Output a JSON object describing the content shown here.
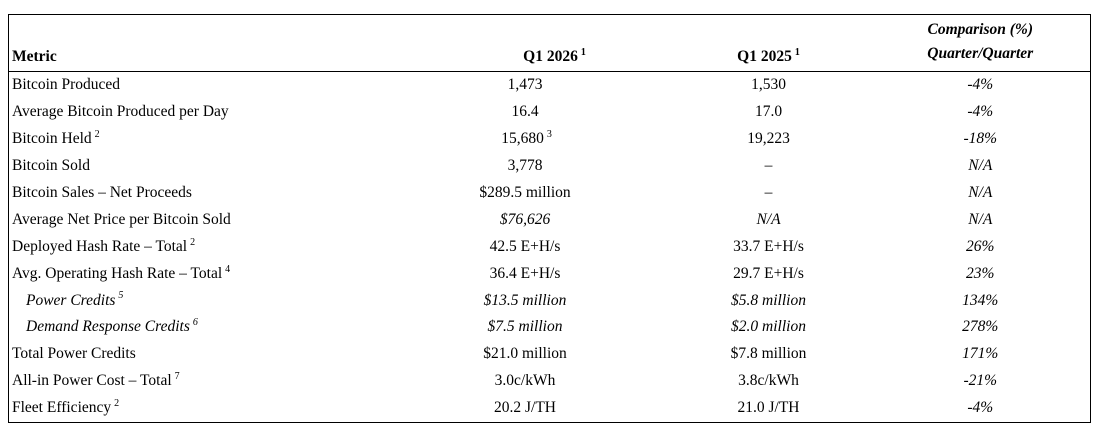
{
  "table": {
    "header": {
      "metric": "Metric",
      "col_2026": "Q1 2026",
      "col_2026_sup": "1",
      "col_2025": "Q1 2025",
      "col_2025_sup": "1",
      "comparison_line1": "Comparison (%)",
      "comparison_line2": "Quarter/Quarter"
    },
    "rows": [
      {
        "label": "Bitcoin Produced",
        "q1_2026": "1,473",
        "q1_2025": "1,530",
        "comparison": "-4%"
      },
      {
        "label": "Average Bitcoin Produced per Day",
        "q1_2026": "16.4",
        "q1_2025": "17.0",
        "comparison": "-4%"
      },
      {
        "label": "Bitcoin Held",
        "sup": "2",
        "q1_2026": "15,680",
        "q1_2026_sup": "3",
        "q1_2025": "19,223",
        "comparison": "-18%"
      },
      {
        "label": "Bitcoin Sold",
        "q1_2026": "3,778",
        "q1_2025": "–",
        "comparison": "N/A"
      },
      {
        "label": "Bitcoin Sales – Net Proceeds",
        "q1_2026": "$289.5 million",
        "q1_2025": "–",
        "comparison": "N/A"
      },
      {
        "label": "Average Net Price per Bitcoin Sold",
        "q1_2026": "$76,626",
        "q1_2025": "N/A",
        "comparison": "N/A"
      },
      {
        "label": "Deployed Hash Rate – Total",
        "sup": "2",
        "q1_2026": "42.5 E+H/s",
        "q1_2025": "33.7 E+H/s",
        "comparison": "26%"
      },
      {
        "label": "Avg. Operating Hash Rate – Total",
        "sup": "4",
        "q1_2026": "36.4 E+H/s",
        "q1_2025": "29.7 E+H/s",
        "comparison": "23%"
      },
      {
        "label": "Power Credits",
        "sup": "5",
        "q1_2026": "$13.5 million",
        "q1_2025": "$5.8 million",
        "comparison": "134%"
      },
      {
        "label": "Demand Response Credits",
        "sup": "6",
        "q1_2026": "$7.5 million",
        "q1_2025": "$2.0 million",
        "comparison": "278%"
      },
      {
        "label": "Total Power Credits",
        "q1_2026": "$21.0 million",
        "q1_2025": "$7.8 million",
        "comparison": "171%"
      },
      {
        "label": "All-in Power Cost – Total",
        "sup": "7",
        "q1_2026": "3.0c/kWh",
        "q1_2025": "3.8c/kWh",
        "comparison": "-21%"
      },
      {
        "label": "Fleet Efficiency",
        "sup": "2",
        "q1_2026": "20.2 J/TH",
        "q1_2025": "21.0 J/TH",
        "comparison": "-4%"
      }
    ]
  }
}
